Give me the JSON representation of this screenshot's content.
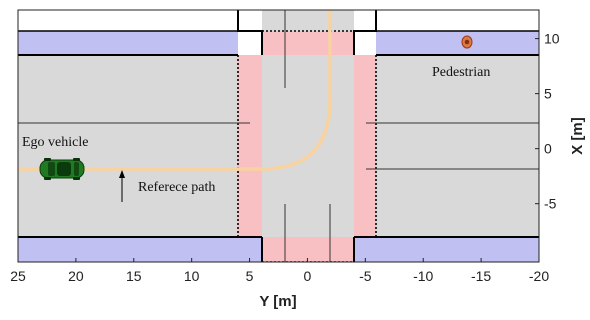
{
  "x_axis": {
    "label": "Y [m]",
    "ticks": [
      "25",
      "20",
      "15",
      "10",
      "5",
      "0",
      "-5",
      "-10",
      "-15",
      "-20"
    ],
    "range": [
      25,
      -20
    ]
  },
  "y_axis": {
    "label": "X [m]",
    "ticks": [
      "10",
      "5",
      "0",
      "-5"
    ],
    "range": [
      -10.3,
      12.6
    ]
  },
  "annotations": {
    "ego_vehicle": "Ego vehicle",
    "reference_path": "Referece path",
    "pedestrian": "Pedestrian"
  },
  "colors": {
    "road": "#d9d9d9",
    "sidewalk": "#c0c0f2",
    "crosswalk": "#f9c0c4",
    "reference_path": "#f8d3a0",
    "ego_vehicle": "#1f7a22",
    "pedestrian": "#d97a4a"
  },
  "icons": {
    "ego_vehicle": "green-car-icon",
    "pedestrian": "pedestrian-icon"
  }
}
